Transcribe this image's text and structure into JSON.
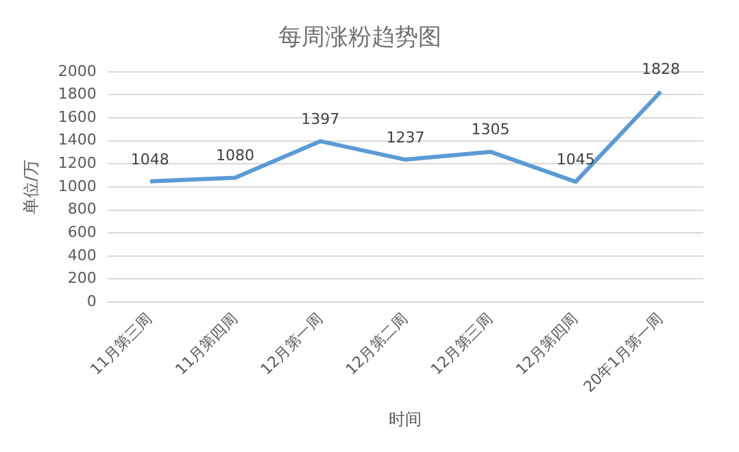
{
  "chart_data": {
    "type": "line",
    "title": "每周涨粉趋势图",
    "xlabel": "时间",
    "ylabel": "单位/万",
    "categories": [
      "11月第三周",
      "11月第四周",
      "12月第一周",
      "12月第二周",
      "12月第三周",
      "12月第四周",
      "20年1月第一周"
    ],
    "series": [
      {
        "color": "#5b9bd5",
        "values": [
          1048,
          1080,
          1397,
          1237,
          1305,
          1045,
          1828
        ]
      }
    ],
    "ylim": [
      0,
      2000
    ],
    "yticks": [
      0,
      200,
      400,
      600,
      800,
      1000,
      1200,
      1400,
      1600,
      1800,
      2000
    ],
    "grid": "y",
    "legend": false,
    "marker": "none",
    "line_style": "solid",
    "data_labels": true
  }
}
